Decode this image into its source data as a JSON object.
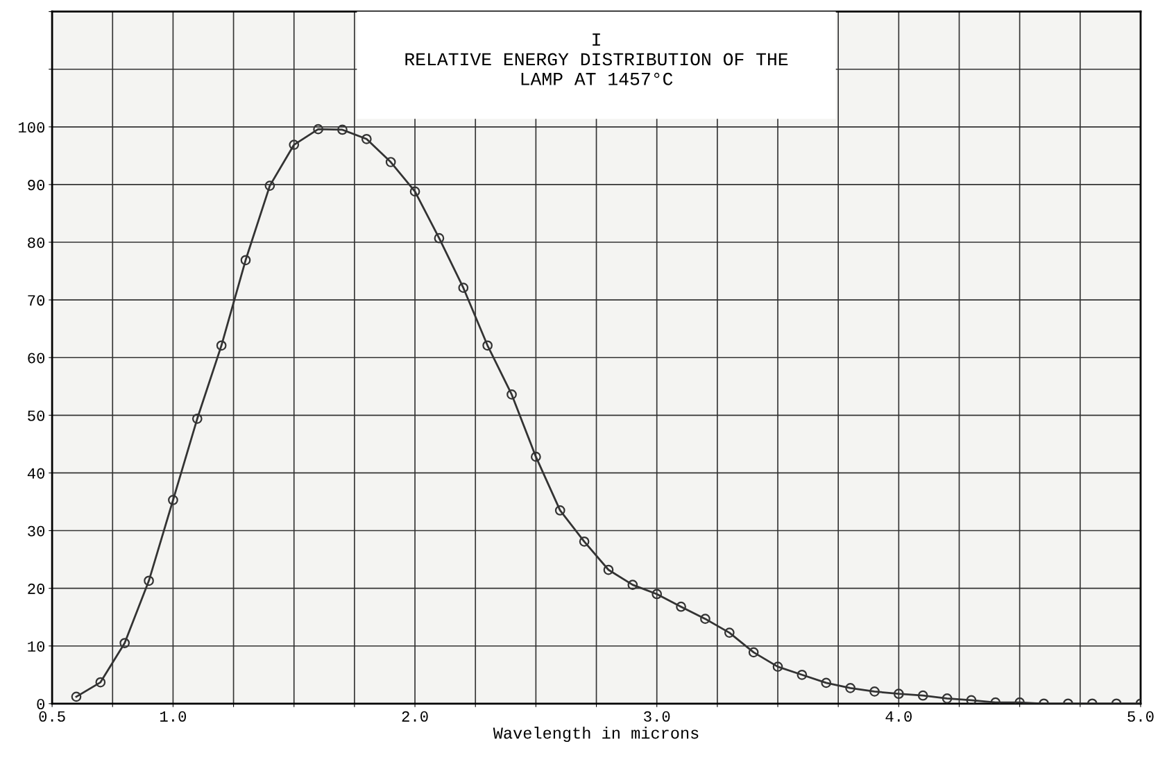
{
  "chart_data": {
    "type": "line",
    "title": "I\nRELATIVE ENERGY DISTRIBUTION OF THE\nLAMP AT 1457°C",
    "xlabel": "Wavelength in microns",
    "x": [
      0.6,
      0.7,
      0.8,
      0.9,
      1.0,
      1.1,
      1.2,
      1.3,
      1.4,
      1.5,
      1.6,
      1.7,
      1.8,
      1.9,
      2.0,
      2.1,
      2.2,
      2.3,
      2.4,
      2.5,
      2.6,
      2.7,
      2.8,
      2.9,
      3.0,
      3.1,
      3.2,
      3.3,
      3.4,
      3.5,
      3.6,
      3.7,
      3.8,
      3.9,
      4.0,
      4.1,
      4.2,
      4.3,
      4.4,
      4.5,
      4.6,
      4.7,
      4.8,
      4.9,
      5.0
    ],
    "series": [
      {
        "color": "#333333",
        "values": [
          1.2,
          3.7,
          10.5,
          21.3,
          35.3,
          49.4,
          62.1,
          76.9,
          89.8,
          96.9,
          99.6,
          99.5,
          97.9,
          93.9,
          88.8,
          80.7,
          72.1,
          62.1,
          53.6,
          42.8,
          33.5,
          28.1,
          23.2,
          20.6,
          19.0,
          16.8,
          14.7,
          12.3,
          8.9,
          6.4,
          5.0,
          3.6,
          2.7,
          2.1,
          1.7,
          1.4,
          0.9,
          0.6,
          0.2,
          0.2,
          0,
          0,
          0,
          0,
          0
        ]
      }
    ],
    "xlim": [
      0.5,
      5.0
    ],
    "ylim": [
      0,
      120
    ],
    "xticks": [
      0.5,
      {
        "value": 0.75,
        "label": null
      },
      "1.0",
      {
        "value": 1.25,
        "label": null
      },
      {
        "value": 1.5,
        "label": null
      },
      {
        "value": 1.75,
        "label": null
      },
      {
        "value": 2.0,
        "label": "2.0"
      },
      {
        "value": 2.25,
        "label": null
      },
      {
        "value": 2.5,
        "label": null
      },
      {
        "value": 2.75,
        "label": null
      },
      {
        "value": 3.0,
        "label": "3.0"
      },
      {
        "value": 3.25,
        "label": null
      },
      {
        "value": 3.5,
        "label": null
      },
      {
        "value": 3.75,
        "label": null
      },
      {
        "value": 4.0,
        "label": "4.0"
      },
      {
        "value": 4.25,
        "label": null
      },
      {
        "value": 4.5,
        "label": null
      },
      {
        "value": 4.75,
        "label": null
      },
      {
        "value": 5.0,
        "label": "5.0"
      }
    ],
    "yticks": [
      0,
      10,
      20,
      30,
      40,
      50,
      60,
      70,
      80,
      90,
      100,
      {
        "value": 110,
        "label": null
      },
      {
        "value": 120,
        "label": null
      }
    ],
    "grid": true,
    "marker": "circle",
    "line_style": "solid"
  }
}
